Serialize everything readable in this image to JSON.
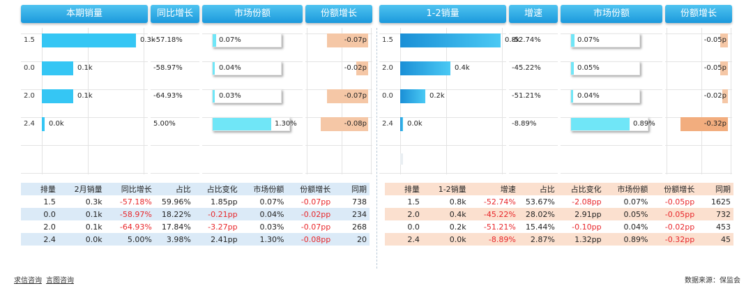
{
  "left": {
    "headers": [
      "本期销量",
      "同比增长",
      "市场份额",
      "份额增长"
    ],
    "table_headers": [
      "排量",
      "2月销量",
      "同比增长",
      "占比",
      "占比变化",
      "市场份额",
      "份额增长",
      "同期"
    ],
    "table_rows": [
      [
        "1.5",
        "0.3k",
        "-57.18%",
        "59.96%",
        "1.85pp",
        "0.07%",
        "-0.07pp",
        "738"
      ],
      [
        "0.0",
        "0.1k",
        "-58.97%",
        "18.22%",
        "-0.21pp",
        "0.04%",
        "-0.02pp",
        "234"
      ],
      [
        "2.0",
        "0.1k",
        "-64.93%",
        "17.84%",
        "-3.27pp",
        "0.03%",
        "-0.07pp",
        "268"
      ],
      [
        "2.4",
        "0.0k",
        "5.00%",
        "3.98%",
        "2.41pp",
        "1.30%",
        "-0.08pp",
        "20"
      ]
    ]
  },
  "right": {
    "headers": [
      "1-2销量",
      "增速",
      "市场份额",
      "份额增长"
    ],
    "table_headers": [
      "排量",
      "1-2销量",
      "增速",
      "占比",
      "占比变化",
      "市场份额",
      "份额增长",
      "同期"
    ],
    "table_rows": [
      [
        "1.5",
        "0.8k",
        "-52.74%",
        "53.67%",
        "-2.08pp",
        "0.07%",
        "-0.05pp",
        "1625"
      ],
      [
        "2.0",
        "0.4k",
        "-45.22%",
        "28.02%",
        "2.91pp",
        "0.05%",
        "-0.05pp",
        "732"
      ],
      [
        "0.0",
        "0.2k",
        "-51.21%",
        "15.44%",
        "-0.10pp",
        "0.04%",
        "-0.02pp",
        "453"
      ],
      [
        "2.4",
        "0.0k",
        "-8.89%",
        "2.87%",
        "1.32pp",
        "0.89%",
        "-0.32pp",
        "45"
      ]
    ]
  },
  "chart_data": [
    {
      "type": "bar",
      "title": "本期销量",
      "categories": [
        "1.5",
        "0.0",
        "2.0",
        "2.4"
      ],
      "series": [
        {
          "name": "本期销量",
          "values": [
            0.3,
            0.1,
            0.1,
            0.0
          ],
          "labels": [
            "0.3k",
            "0.1k",
            "0.1k",
            "0.0k"
          ]
        },
        {
          "name": "同比增长",
          "values": [
            -57.18,
            -58.97,
            -64.93,
            5.0
          ],
          "labels": [
            "-57.18%",
            "-58.97%",
            "-64.93%",
            "5.00%"
          ]
        },
        {
          "name": "市场份额",
          "values": [
            0.07,
            0.04,
            0.03,
            1.3
          ],
          "labels": [
            "0.07%",
            "0.04%",
            "0.03%",
            "1.30%"
          ]
        },
        {
          "name": "份额增长",
          "values": [
            -0.07,
            -0.02,
            -0.07,
            -0.08
          ],
          "labels": [
            "-0.07p",
            "-0.02p",
            "-0.07p",
            "-0.08p"
          ]
        }
      ]
    },
    {
      "type": "bar",
      "title": "1-2销量",
      "categories": [
        "1.5",
        "2.0",
        "0.0",
        "2.4"
      ],
      "series": [
        {
          "name": "1-2销量",
          "values": [
            0.8,
            0.4,
            0.2,
            0.0
          ],
          "labels": [
            "0.8k",
            "0.4k",
            "0.2k",
            "0.0k"
          ]
        },
        {
          "name": "增速",
          "values": [
            -52.74,
            -45.22,
            -51.21,
            -8.89
          ],
          "labels": [
            "-52.74%",
            "-45.22%",
            "-51.21%",
            "-8.89%"
          ]
        },
        {
          "name": "市场份额",
          "values": [
            0.07,
            0.05,
            0.04,
            0.89
          ],
          "labels": [
            "0.07%",
            "0.05%",
            "0.04%",
            "0.89%"
          ]
        },
        {
          "name": "份额增长",
          "values": [
            -0.05,
            -0.05,
            -0.02,
            -0.32
          ],
          "labels": [
            "-0.05p",
            "-0.05p",
            "-0.02p",
            "-0.32p"
          ]
        }
      ]
    }
  ],
  "colors": {
    "header": "#2aaae6",
    "left_bar": "#35c6f4",
    "right_bar": "#1a8fd6",
    "share_fill": "#70e6f7",
    "growth_bar": "#f5c7a6",
    "left_table_stripe": "#dbeaf7",
    "right_table_stripe": "#fbe0cf",
    "negative": "#e8262a"
  },
  "footer": {
    "links": [
      "求信咨询",
      "言图咨询"
    ],
    "source": "数据来源：保监会"
  }
}
